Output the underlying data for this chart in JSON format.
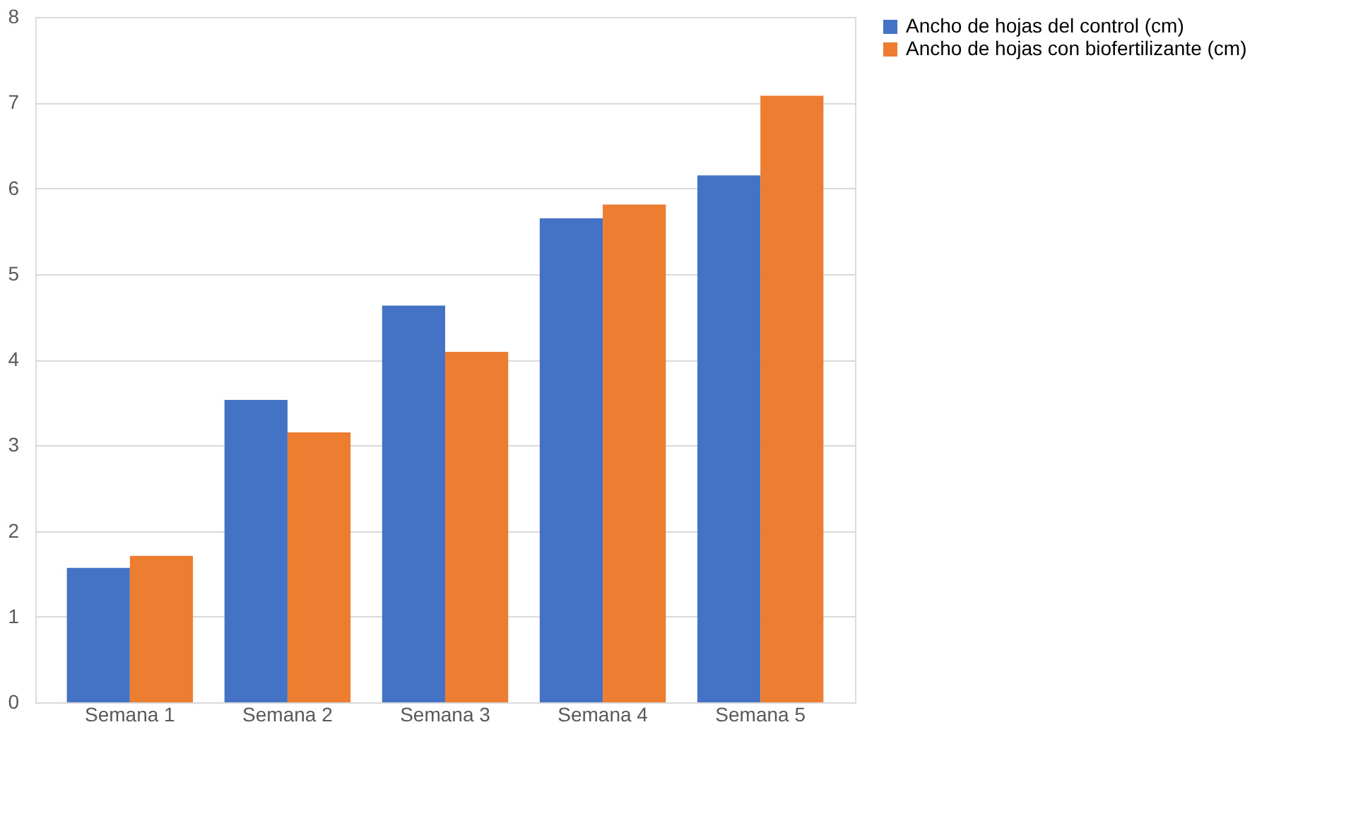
{
  "chart_data": {
    "type": "bar",
    "categories": [
      "Semana 1",
      "Semana 2",
      "Semana 3",
      "Semana 4",
      "Semana 5"
    ],
    "series": [
      {
        "name": "Ancho de hojas del control (cm)",
        "color": "#4472c4",
        "values": [
          1.57,
          3.53,
          4.63,
          5.65,
          6.15
        ]
      },
      {
        "name": "Ancho de hojas con biofertilizante (cm)",
        "color": "#ed7d31",
        "values": [
          1.71,
          3.15,
          4.09,
          5.81,
          7.08
        ]
      }
    ],
    "ylim": [
      0,
      8
    ],
    "yticks": [
      0,
      1,
      2,
      3,
      4,
      5,
      6,
      7,
      8
    ],
    "grid": "y",
    "legend": "right"
  }
}
